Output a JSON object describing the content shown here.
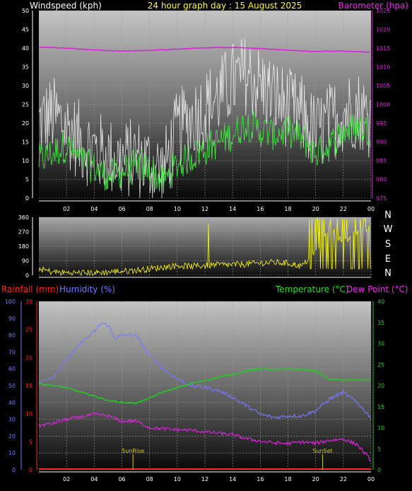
{
  "header": {
    "left_title": "Windspeed (kph)",
    "center_title": "24 hour graph day : 15 August 2025",
    "right_title": "Barometer (hpa)"
  },
  "colors": {
    "wind": "#ffffff",
    "wind_avg": "#44ee44",
    "barometer": "#dd22dd",
    "direction": "#ffff00",
    "rainfall": "#ff2222",
    "humidity": "#7777ff",
    "temperature": "#22cc22",
    "dewpoint": "#dd22dd",
    "sun": "#cccc00",
    "grid": "#9a9a9a"
  },
  "x_ticks": [
    "02",
    "04",
    "06",
    "08",
    "10",
    "12",
    "14",
    "16",
    "18",
    "20",
    "22",
    "00"
  ],
  "chart_data": [
    {
      "type": "line",
      "name": "wind_baro",
      "xlim": [
        0,
        24
      ],
      "ylabel": "Windspeed (kph)",
      "ylim": [
        0,
        50
      ],
      "yticks": [
        "0",
        "5",
        "10",
        "15",
        "20",
        "25",
        "30",
        "35",
        "40",
        "45",
        "50"
      ],
      "y2label": "Barometer (hpa)",
      "y2lim": [
        975,
        1025
      ],
      "y2ticks": [
        "975",
        "980",
        "985",
        "990",
        "995",
        "1000",
        "1005",
        "1010",
        "1015",
        "1020",
        "1025"
      ],
      "series": [
        {
          "key": "gust",
          "x": [
            0,
            1,
            2,
            3,
            4,
            5,
            6,
            7,
            8,
            9,
            10,
            11,
            12,
            13,
            14,
            15,
            16,
            17,
            18,
            19,
            20,
            21,
            22,
            23,
            24
          ],
          "values": [
            20,
            22,
            19,
            15,
            13,
            11,
            10,
            11,
            9,
            7,
            18,
            21,
            24,
            27,
            31,
            33,
            30,
            27,
            24,
            22,
            17,
            20,
            23,
            24,
            21
          ]
        },
        {
          "key": "average",
          "x": [
            0,
            1,
            2,
            3,
            4,
            5,
            6,
            7,
            8,
            9,
            10,
            11,
            12,
            13,
            14,
            15,
            16,
            17,
            18,
            19,
            20,
            21,
            22,
            23,
            24
          ],
          "values": [
            10,
            12,
            14,
            10,
            8,
            6,
            7,
            9,
            8,
            4,
            9,
            11,
            13,
            15,
            17,
            20,
            18,
            17,
            18,
            16,
            12,
            14,
            18,
            19,
            18
          ]
        },
        {
          "key": "barometer",
          "x": [
            0,
            2,
            4,
            6,
            8,
            10,
            12,
            14,
            16,
            18,
            20,
            22,
            24
          ],
          "values": [
            1015.3,
            1015,
            1014.5,
            1014.2,
            1014.4,
            1014.7,
            1015.1,
            1015.2,
            1014.9,
            1014.4,
            1014.1,
            1014.2,
            1013.9
          ]
        }
      ]
    },
    {
      "type": "scatter",
      "name": "wind_direction",
      "xlim": [
        0,
        24
      ],
      "ylim": [
        0,
        360
      ],
      "yticks": [
        "0",
        "90",
        "180",
        "270",
        "360"
      ],
      "compass": [
        "N",
        "W",
        "S",
        "E",
        "N"
      ],
      "series": [
        {
          "key": "direction",
          "x": [
            0,
            1,
            2,
            3,
            4,
            5,
            6,
            7,
            8,
            9,
            10,
            11,
            12,
            13,
            14,
            15,
            16,
            17,
            18,
            19,
            20,
            21,
            22,
            23,
            24
          ],
          "values": [
            40,
            20,
            15,
            15,
            15,
            20,
            25,
            30,
            40,
            50,
            60,
            55,
            60,
            65,
            65,
            70,
            75,
            80,
            75,
            55,
            150,
            300,
            200,
            270,
            310
          ]
        }
      ]
    },
    {
      "type": "line",
      "name": "rain_humidity_temp",
      "xlim": [
        0,
        24
      ],
      "labels": {
        "rainfall": "Rainfall (mm)",
        "humidity": "Humidity (%)",
        "temperature": "Temperature (°C)",
        "dewpoint": "Dew Point (°C)"
      },
      "humidity_ylim": [
        0,
        100
      ],
      "humidity_ticks": [
        "0",
        "10",
        "20",
        "30",
        "40",
        "50",
        "60",
        "70",
        "80",
        "90",
        "100"
      ],
      "rain_ylim": [
        0,
        30
      ],
      "rain_ticks": [
        "0",
        "5",
        "10",
        "15",
        "20",
        "25",
        "30"
      ],
      "temp_ylim": [
        0,
        40
      ],
      "temp_ticks": [
        "0",
        "5",
        "10",
        "15",
        "20",
        "25",
        "30",
        "35",
        "40"
      ],
      "sun_labels": {
        "sunrise": "SunRise",
        "sunset": "SunSet"
      },
      "sunrise_hour": 6.8,
      "sunset_hour": 20.5,
      "series": [
        {
          "key": "humidity",
          "x": [
            0,
            1,
            2,
            3,
            4,
            4.5,
            5,
            5.5,
            6,
            7,
            8,
            9,
            10,
            11,
            12,
            13,
            14,
            15,
            16,
            17,
            18,
            19,
            20,
            21,
            22,
            23,
            24
          ],
          "values": [
            52,
            55,
            65,
            75,
            82,
            87,
            86,
            78,
            80,
            80,
            68,
            60,
            54,
            50,
            49,
            47,
            43,
            38,
            33,
            31,
            32,
            32,
            35,
            42,
            46,
            40,
            31
          ]
        },
        {
          "key": "rainfall",
          "x": [
            0,
            24
          ],
          "values": [
            0,
            0
          ]
        },
        {
          "key": "temperature",
          "x": [
            0,
            1,
            2,
            3,
            4,
            5,
            6,
            7,
            8,
            9,
            10,
            11,
            12,
            13,
            14,
            15,
            16,
            17,
            18,
            19,
            20,
            21,
            22,
            23,
            24
          ],
          "values": [
            20.5,
            20,
            19.5,
            18.5,
            17.5,
            16.5,
            16,
            15.8,
            17,
            18.5,
            19.5,
            20.5,
            21.2,
            22,
            22.7,
            23.5,
            24,
            23.8,
            24,
            23.8,
            23.5,
            21.5,
            21.3,
            21.3,
            21.3
          ]
        },
        {
          "key": "dewpoint",
          "x": [
            0,
            1,
            2,
            3,
            4,
            5,
            6,
            7,
            8,
            9,
            10,
            11,
            12,
            13,
            14,
            15,
            16,
            17,
            18,
            19,
            20,
            21,
            22,
            23,
            24
          ],
          "values": [
            10.5,
            11,
            12,
            12.5,
            13.2,
            12.8,
            11.5,
            11.6,
            10,
            9.7,
            9.5,
            9.4,
            9,
            8.7,
            8.3,
            7.4,
            6.8,
            6.4,
            6.2,
            6.6,
            6.3,
            7,
            7.3,
            6,
            2.2
          ]
        }
      ]
    }
  ]
}
